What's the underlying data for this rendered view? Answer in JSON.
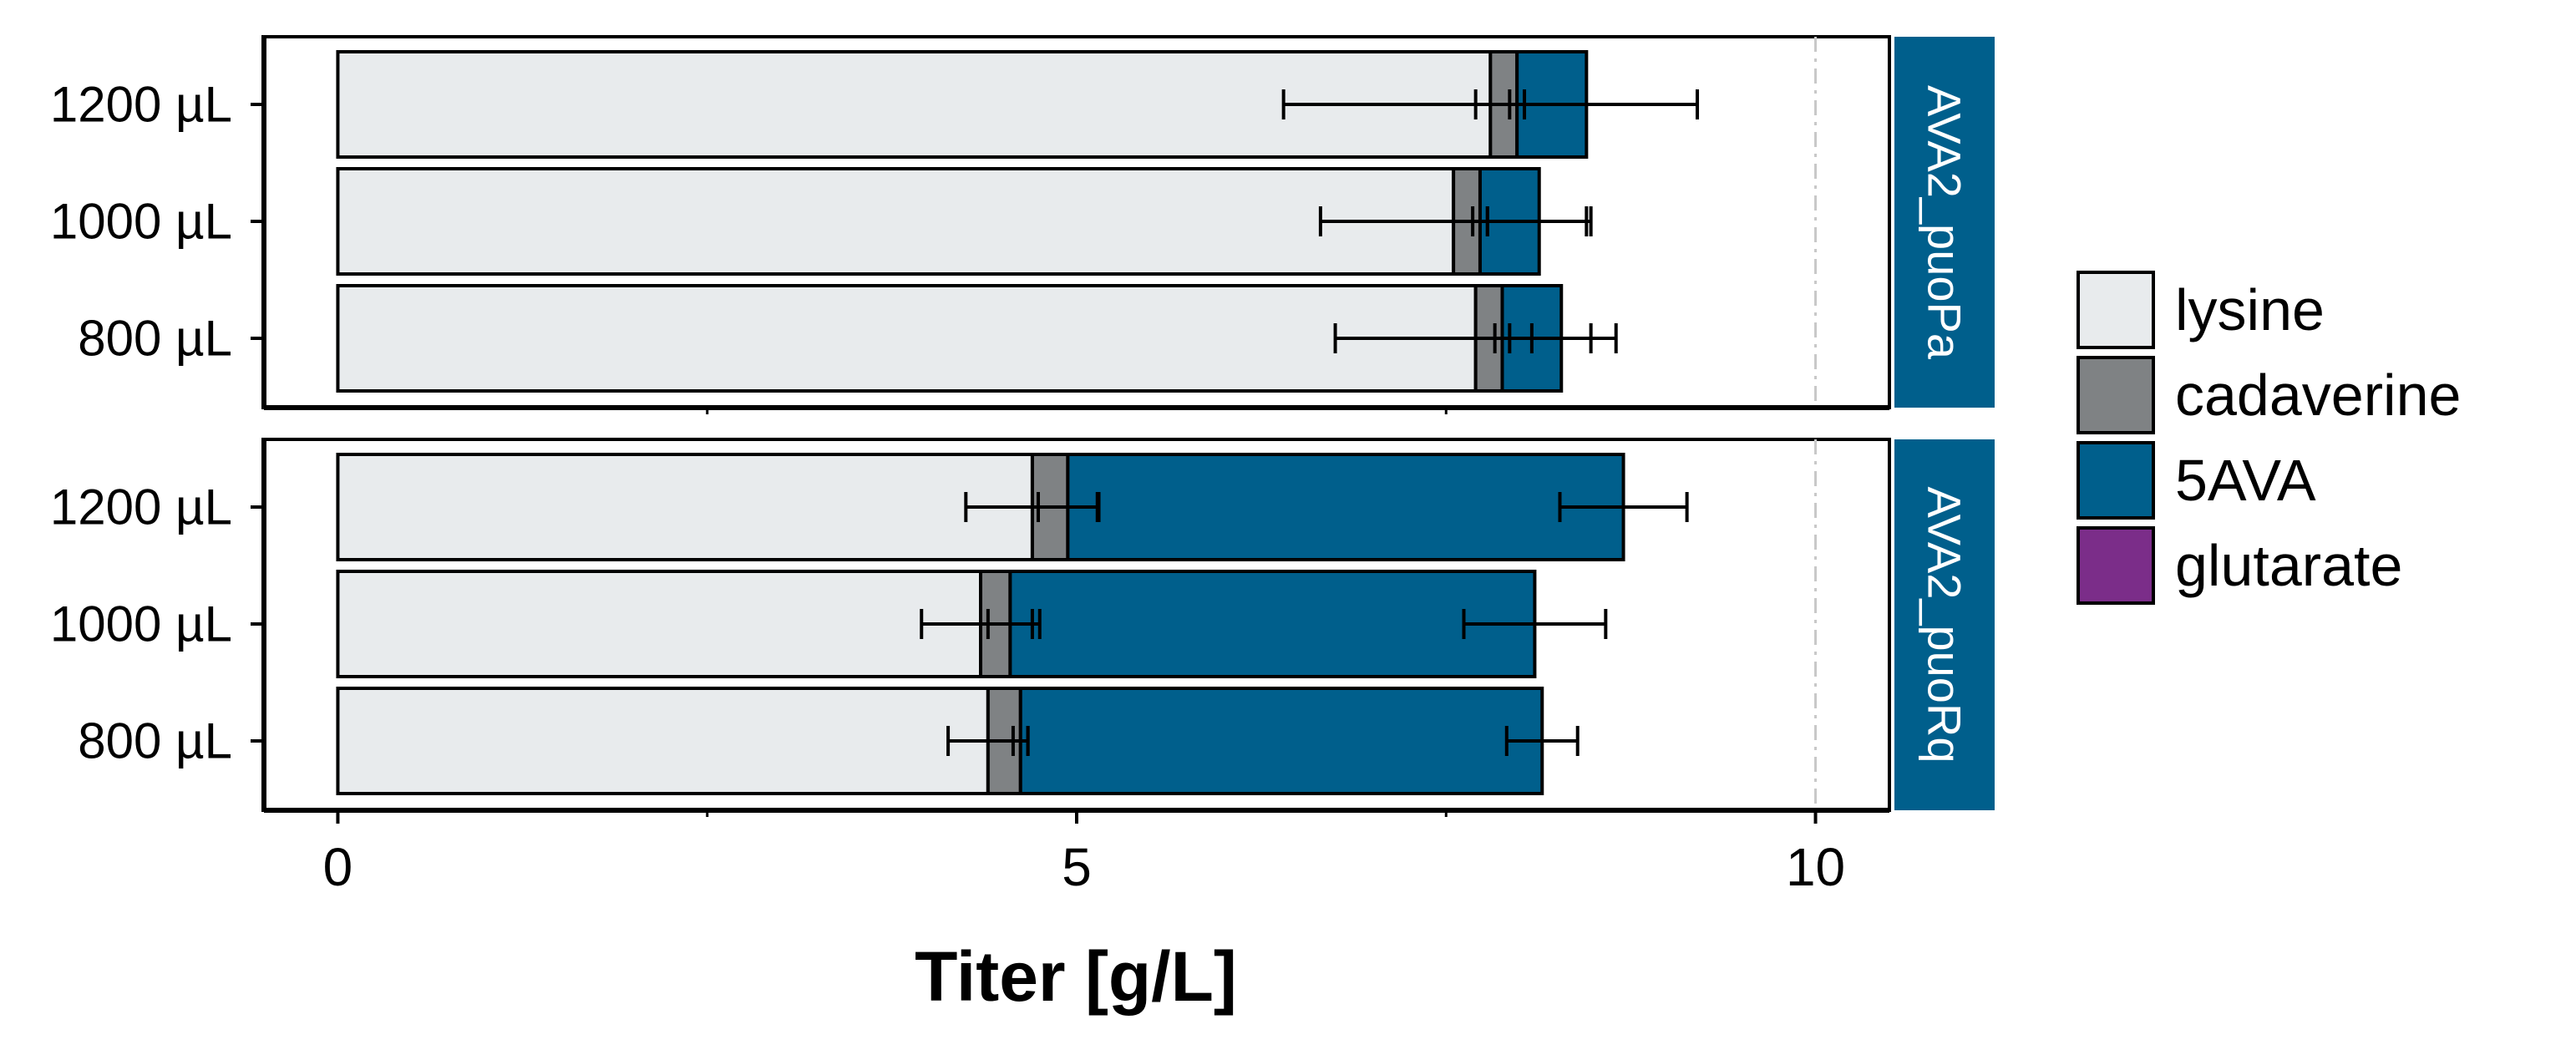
{
  "chart_data": {
    "type": "bar",
    "orientation": "horizontal",
    "stacked": true,
    "xlabel": "Titer [g/L]",
    "ylabel": "",
    "xlim": [
      -0.5,
      10.5
    ],
    "xticks": [
      0,
      5,
      10
    ],
    "reference_line": 10,
    "colors": {
      "lysine": "#e8ebed",
      "cadaverine": "#7f8284",
      "5AVA": "#005f8c",
      "glutarate": "#7b2d89",
      "strip": "#005f8c"
    },
    "legend": {
      "position": "right",
      "entries": [
        "lysine",
        "cadaverine",
        "5AVA",
        "glutarate"
      ]
    },
    "panels": [
      {
        "strip": "AVA2_puoPa",
        "categories": [
          "1200 µL",
          "1000 µL",
          "800 µL"
        ],
        "series": [
          {
            "key": "lysine",
            "values": [
              7.8,
              7.55,
              7.7
            ],
            "errors": [
              1.4,
              0.9,
              0.95
            ]
          },
          {
            "key": "cadaverine",
            "values": [
              0.18,
              0.18,
              0.18
            ],
            "errors": [
              0.05,
              0.05,
              0.05
            ]
          },
          {
            "key": "5AVA",
            "values": [
              0.47,
              0.4,
              0.4
            ],
            "errors": [
              0.75,
              0.35,
              0.2
            ]
          },
          {
            "key": "glutarate",
            "values": [
              0,
              0,
              0
            ],
            "errors": [
              0,
              0,
              0
            ]
          }
        ]
      },
      {
        "strip": "AVA2_puoRq",
        "categories": [
          "1200 µL",
          "1000 µL",
          "800 µL"
        ],
        "series": [
          {
            "key": "lysine",
            "values": [
              4.7,
              4.35,
              4.4
            ],
            "errors": [
              0.45,
              0.4,
              0.27
            ]
          },
          {
            "key": "cadaverine",
            "values": [
              0.24,
              0.2,
              0.22
            ],
            "errors": [
              0.2,
              0.15,
              0.05
            ]
          },
          {
            "key": "5AVA",
            "values": [
              3.76,
              3.55,
              3.53
            ],
            "errors": [
              0.43,
              0.48,
              0.24
            ]
          },
          {
            "key": "glutarate",
            "values": [
              0,
              0,
              0
            ],
            "errors": [
              0,
              0,
              0
            ]
          }
        ]
      }
    ]
  }
}
